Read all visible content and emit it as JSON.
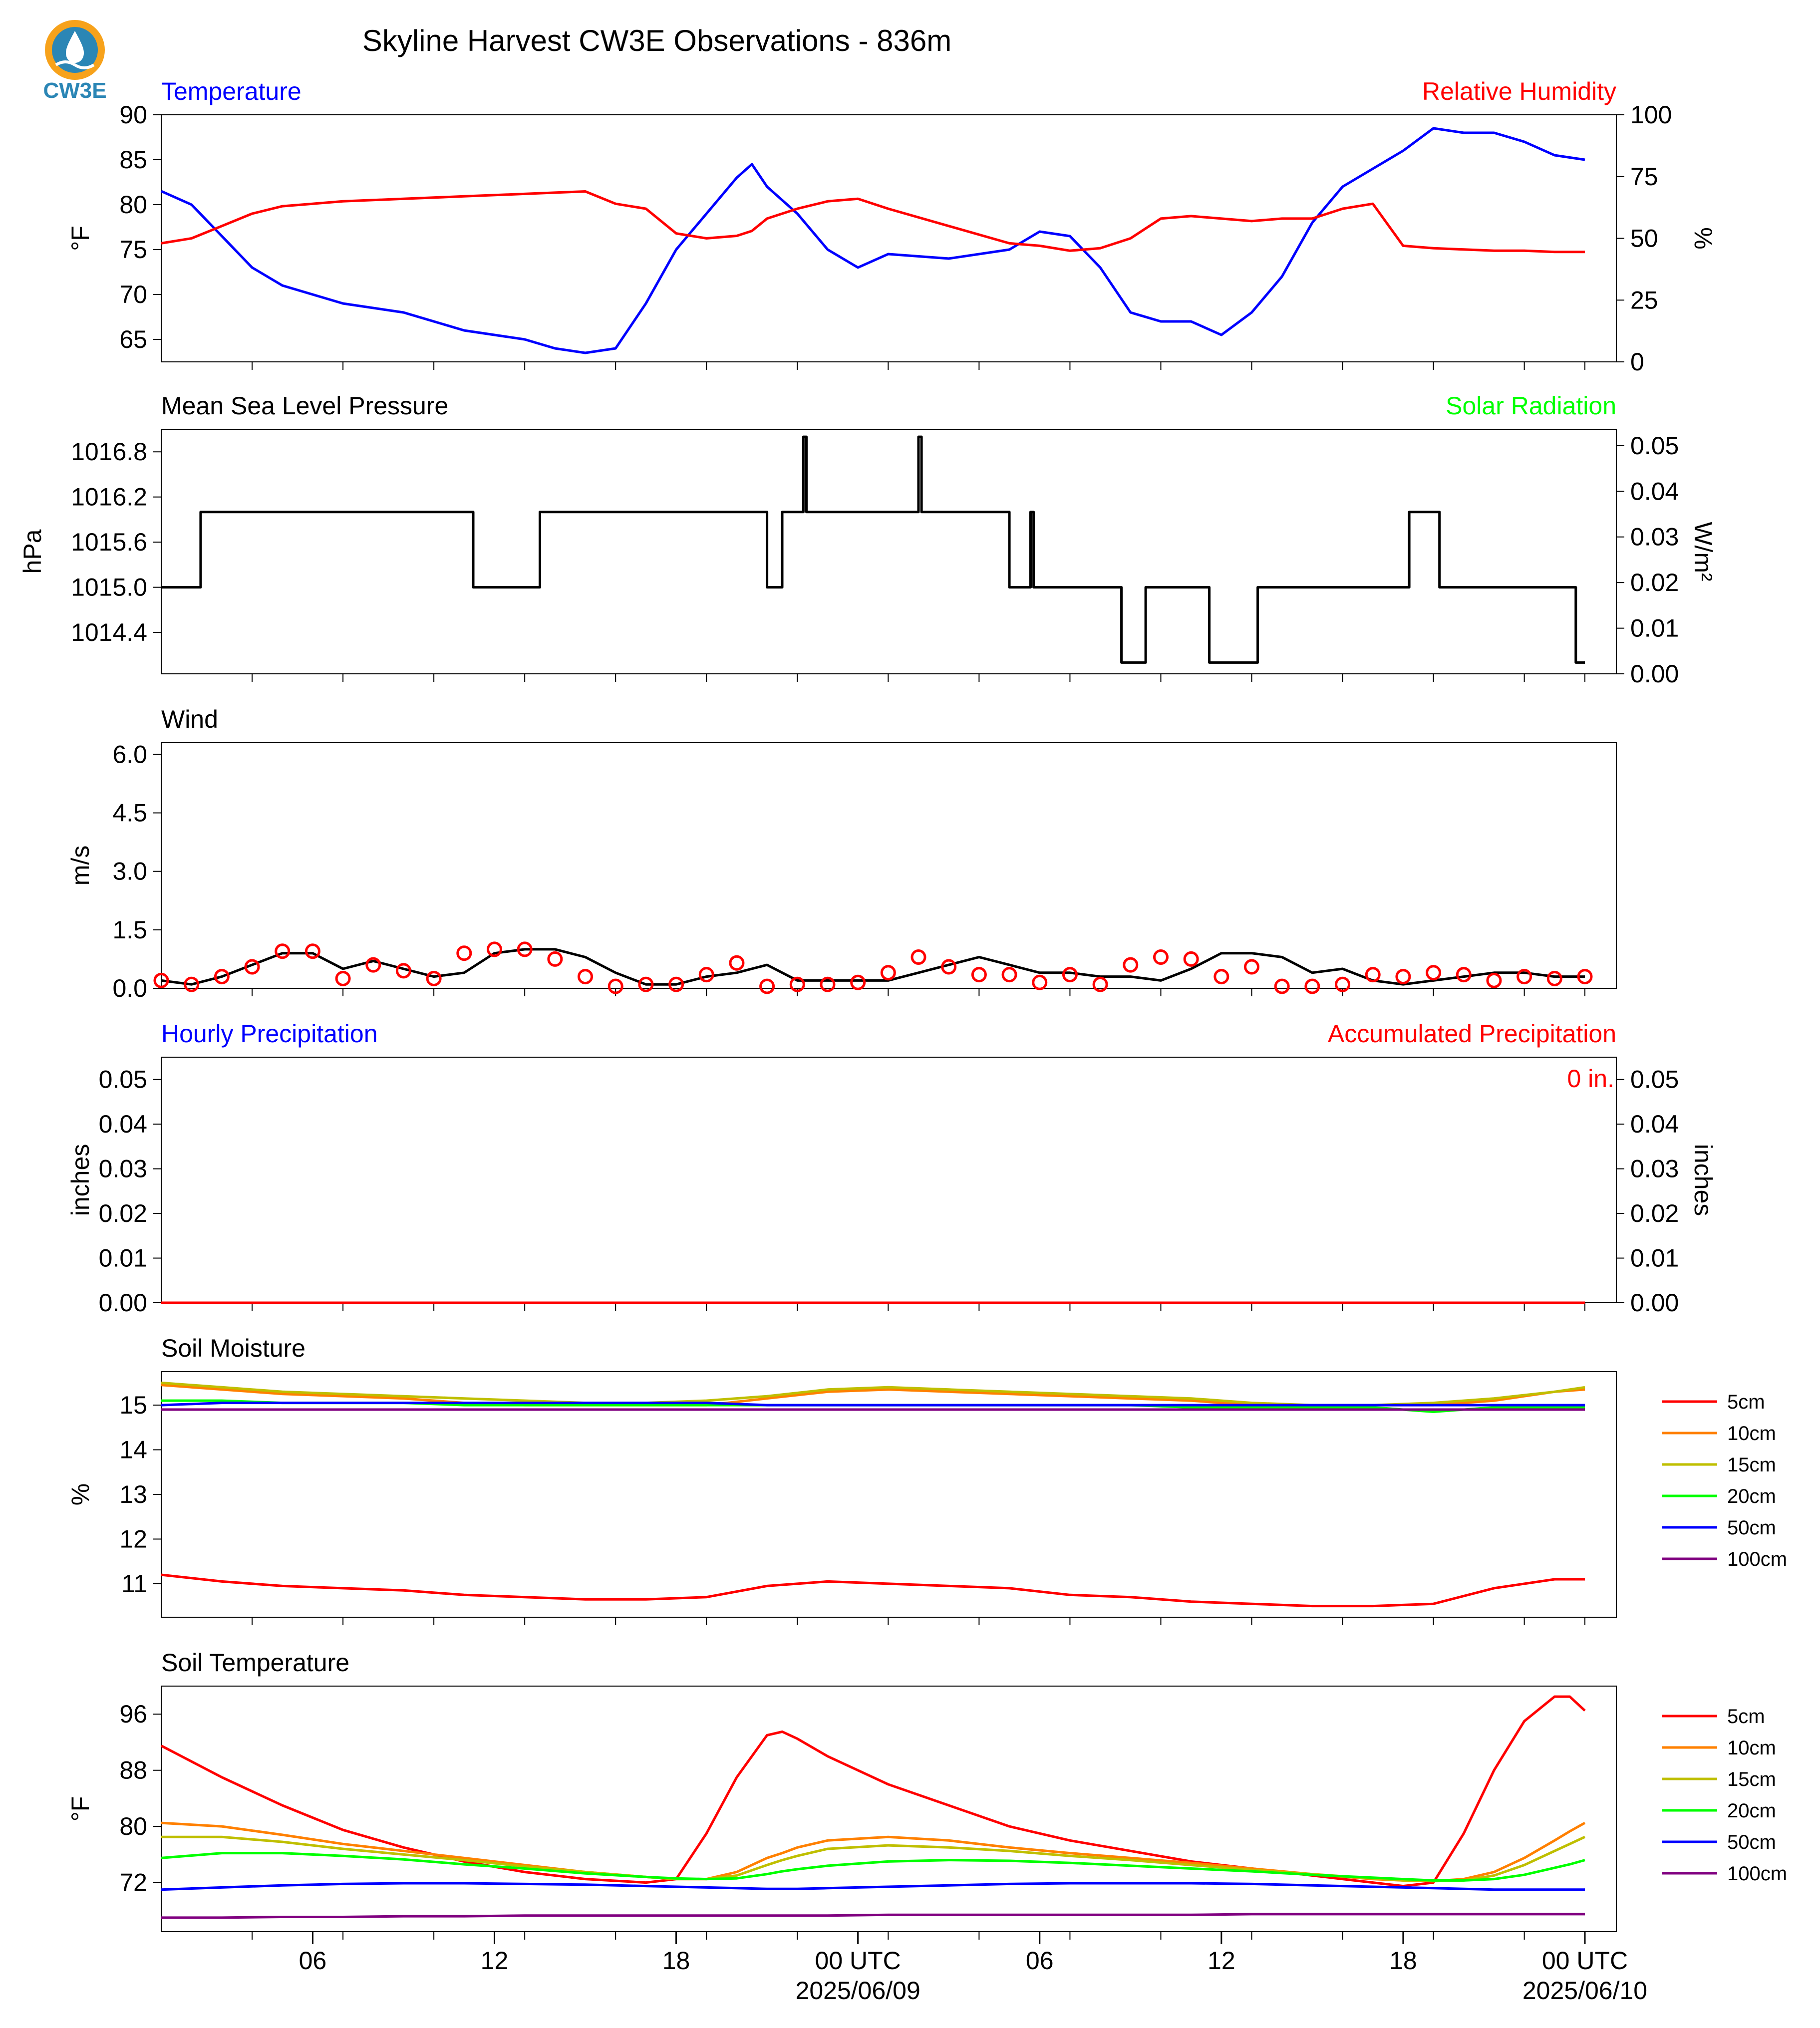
{
  "title": "Skyline Harvest CW3E Observations - 836m",
  "logo": {
    "text": "CW3E",
    "color": "#2b86b5",
    "accent": "#f7a21b"
  },
  "colors": {
    "blue": "#0000ff",
    "red": "#ff0000",
    "green": "#00ff00",
    "black": "#000000",
    "orange": "#ff8000",
    "olive": "#bfbf00",
    "purple": "#800080"
  },
  "time_axis": {
    "tick_labels": [
      "06",
      "12",
      "18",
      "00 UTC",
      "06",
      "12",
      "18",
      "00 UTC"
    ],
    "date_labels": [
      "2025/06/09",
      "2025/06/10"
    ]
  },
  "legend": {
    "entries": [
      "5cm",
      "10cm",
      "15cm",
      "20cm",
      "50cm",
      "100cm"
    ],
    "colors": [
      "#ff0000",
      "#ff8000",
      "#bfbf00",
      "#00ff00",
      "#0000ff",
      "#800080"
    ]
  },
  "chart_data": [
    {
      "id": "temp_rh",
      "type": "line",
      "title_left": "Temperature",
      "title_right": "Relative Humidity",
      "ylabel": "°F",
      "ylabel2": "%",
      "ylim": [
        62.5,
        90
      ],
      "yticks": [
        "65",
        "70",
        "75",
        "80",
        "85",
        "90"
      ],
      "ylim2": [
        0,
        100
      ],
      "yticks2": [
        "0",
        "25",
        "50",
        "75",
        "100"
      ],
      "x_hours": [
        0,
        1,
        2,
        3,
        4,
        5,
        6,
        8,
        10,
        12,
        13,
        14,
        15,
        16,
        17,
        18,
        19,
        19.5,
        20,
        21,
        22,
        23,
        24,
        26,
        28,
        29,
        30,
        31,
        32,
        33,
        34,
        35,
        36,
        37,
        38,
        39,
        40,
        41,
        42,
        43,
        44,
        45,
        46,
        47
      ],
      "series": [
        {
          "name": "Temperature",
          "color": "#0000ff",
          "values": [
            81.5,
            80,
            76.5,
            73,
            71,
            70,
            69,
            68,
            66,
            65,
            64,
            63.5,
            64,
            69,
            75,
            79,
            83,
            84.5,
            82,
            79,
            75,
            73,
            74.5,
            74,
            75,
            77,
            76.5,
            73,
            68,
            67,
            67,
            65.5,
            68,
            72,
            78,
            82,
            84,
            86,
            88.5,
            88,
            88,
            87,
            85.5,
            85
          ]
        },
        {
          "name": "Relative Humidity",
          "color": "#ff0000",
          "axis": "right",
          "values": [
            48,
            50,
            55,
            60,
            63,
            64,
            65,
            66,
            67,
            68,
            68.5,
            69,
            64,
            62,
            52,
            50,
            51,
            53,
            58,
            62,
            65,
            66,
            62,
            55,
            48,
            47,
            45,
            46,
            50,
            58,
            59,
            58,
            57,
            58,
            58,
            62,
            64,
            47,
            46,
            45.5,
            45,
            45,
            44.5,
            44.5
          ]
        }
      ]
    },
    {
      "id": "pressure",
      "type": "line",
      "title_left": "Mean Sea Level Pressure",
      "title_right": "Solar Radiation",
      "ylabel": "hPa",
      "ylabel2": "W/m²",
      "ylim": [
        1013.85,
        1017.1
      ],
      "yticks": [
        "1016.8",
        "1016.2",
        "1015.6",
        "1015.0",
        "1014.4"
      ],
      "ylim2": [
        0,
        0.0536
      ],
      "yticks2": [
        "0.00",
        "0.01",
        "0.02",
        "0.03",
        "0.04",
        "0.05"
      ],
      "x_hours": [
        0,
        1.3,
        1.3,
        10.3,
        10.3,
        12.5,
        12.5,
        14.0,
        14.0,
        20.0,
        20.0,
        20.5,
        20.5,
        21.2,
        21.2,
        21.3,
        21.3,
        25.0,
        25.0,
        25.1,
        25.1,
        28.0,
        28.0,
        28.7,
        28.7,
        28.8,
        28.8,
        31.7,
        31.7,
        32.5,
        32.5,
        34.6,
        34.6,
        36.2,
        36.2,
        36.9,
        36.9,
        41.2,
        41.2,
        42.2,
        42.2,
        46.7,
        46.7,
        47.0
      ],
      "series": [
        {
          "name": "Mean Sea Level Pressure",
          "color": "#000000",
          "values": [
            1015.0,
            1015.0,
            1016.0,
            1016.0,
            1015.0,
            1015.0,
            1016.0,
            1016.0,
            1016.0,
            1016.0,
            1015.0,
            1015.0,
            1016.0,
            1016.0,
            1017.0,
            1017.0,
            1016.0,
            1016.0,
            1017.0,
            1017.0,
            1016.0,
            1016.0,
            1015.0,
            1015.0,
            1016.0,
            1016.0,
            1015.0,
            1015.0,
            1014.0,
            1014.0,
            1015.0,
            1015.0,
            1014.0,
            1014.0,
            1015.0,
            1015.0,
            1015.0,
            1015.0,
            1016.0,
            1016.0,
            1015.0,
            1015.0,
            1014.0,
            1014.0
          ]
        }
      ]
    },
    {
      "id": "wind",
      "type": "line",
      "title_left": "Wind",
      "ylabel": "m/s",
      "ylim": [
        0,
        6.3
      ],
      "yticks": [
        "0.0",
        "1.5",
        "3.0",
        "4.5",
        "6.0"
      ],
      "x_hours": [
        0,
        1,
        2,
        3,
        4,
        5,
        6,
        7,
        8,
        9,
        10,
        11,
        12,
        13,
        14,
        15,
        16,
        17,
        18,
        19,
        20,
        21,
        22,
        23,
        24,
        25,
        26,
        27,
        28,
        29,
        30,
        31,
        32,
        33,
        34,
        35,
        36,
        37,
        38,
        39,
        40,
        41,
        42,
        43,
        44,
        45,
        46,
        47
      ],
      "series": [
        {
          "name": "Wind",
          "color": "#000000",
          "values": [
            0.2,
            0.1,
            0.3,
            0.6,
            0.9,
            0.9,
            0.5,
            0.7,
            0.5,
            0.3,
            0.4,
            0.9,
            1.0,
            1.0,
            0.8,
            0.4,
            0.1,
            0.1,
            0.3,
            0.4,
            0.6,
            0.2,
            0.2,
            0.2,
            0.2,
            0.4,
            0.6,
            0.8,
            0.6,
            0.4,
            0.4,
            0.3,
            0.3,
            0.2,
            0.5,
            0.9,
            0.9,
            0.8,
            0.4,
            0.5,
            0.2,
            0.1,
            0.2,
            0.3,
            0.4,
            0.4,
            0.3,
            0.3
          ]
        },
        {
          "name": "Wind gust markers",
          "color": "#ff0000",
          "marker": "circle",
          "values": [
            0.2,
            0.1,
            0.3,
            0.55,
            0.95,
            0.95,
            0.25,
            0.6,
            0.45,
            0.25,
            0.9,
            1.0,
            1.0,
            0.75,
            0.3,
            0.05,
            0.1,
            0.1,
            0.35,
            0.65,
            0.05,
            0.1,
            0.1,
            0.15,
            0.4,
            0.8,
            0.55,
            0.35,
            0.35,
            0.15,
            0.35,
            0.1,
            0.6,
            0.8,
            0.75,
            0.3,
            0.55,
            0.05,
            0.05,
            0.1,
            0.35,
            0.3,
            0.4,
            0.35,
            0.2,
            0.3,
            0.25,
            0.3
          ]
        }
      ]
    },
    {
      "id": "precip",
      "type": "line",
      "title_left": "Hourly Precipitation",
      "title_right": "Accumulated Precipitation",
      "annotation": "0 in.",
      "ylabel": "inches",
      "ylabel2": "inches",
      "ylim": [
        0,
        0.055
      ],
      "yticks": [
        "0.00",
        "0.01",
        "0.02",
        "0.03",
        "0.04",
        "0.05"
      ],
      "yticks2": [
        "0.00",
        "0.01",
        "0.02",
        "0.03",
        "0.04",
        "0.05"
      ],
      "x_hours": [
        0,
        47
      ],
      "series": [
        {
          "name": "Accumulated Precipitation",
          "color": "#ff0000",
          "values": [
            0,
            0
          ]
        }
      ]
    },
    {
      "id": "soil_moisture",
      "type": "line",
      "title_left": "Soil Moisture",
      "ylabel": "%",
      "ylim": [
        10.25,
        15.75
      ],
      "yticks": [
        "11",
        "12",
        "13",
        "14",
        "15"
      ],
      "x_hours": [
        0,
        2,
        4,
        8,
        10,
        12,
        14,
        16,
        18,
        20,
        22,
        24,
        26,
        28,
        30,
        32,
        34,
        36,
        38,
        40,
        42,
        44,
        46,
        47
      ],
      "series": [
        {
          "name": "5cm",
          "color": "#ff0000",
          "values": [
            11.2,
            11.05,
            10.95,
            10.85,
            10.75,
            10.7,
            10.65,
            10.65,
            10.7,
            10.95,
            11.05,
            11.0,
            10.95,
            10.9,
            10.75,
            10.7,
            10.6,
            10.55,
            10.5,
            10.5,
            10.55,
            10.9,
            11.1,
            11.1
          ]
        },
        {
          "name": "10cm",
          "color": "#ff8000",
          "values": [
            15.45,
            15.35,
            15.25,
            15.15,
            15.05,
            15.0,
            15.0,
            15.0,
            15.0,
            15.15,
            15.3,
            15.35,
            15.3,
            15.25,
            15.2,
            15.15,
            15.1,
            15.0,
            15.0,
            15.0,
            15.0,
            15.1,
            15.3,
            15.35
          ]
        },
        {
          "name": "15cm",
          "color": "#bfbf00",
          "values": [
            15.5,
            15.4,
            15.3,
            15.2,
            15.15,
            15.1,
            15.05,
            15.05,
            15.1,
            15.2,
            15.35,
            15.4,
            15.35,
            15.3,
            15.25,
            15.2,
            15.15,
            15.05,
            15.0,
            15.0,
            15.05,
            15.15,
            15.3,
            15.4
          ]
        },
        {
          "name": "20cm",
          "color": "#00ff00",
          "values": [
            15.1,
            15.1,
            15.05,
            15.05,
            15.0,
            15.0,
            15.0,
            15.0,
            15.0,
            15.0,
            15.0,
            15.0,
            15.0,
            15.0,
            15.0,
            15.0,
            14.95,
            14.95,
            14.95,
            14.95,
            14.85,
            14.95,
            14.95,
            14.95
          ]
        },
        {
          "name": "50cm",
          "color": "#0000ff",
          "values": [
            15.0,
            15.05,
            15.05,
            15.05,
            15.05,
            15.05,
            15.05,
            15.05,
            15.05,
            15.0,
            15.0,
            15.0,
            15.0,
            15.0,
            15.0,
            15.0,
            15.0,
            15.0,
            15.0,
            15.0,
            15.0,
            15.0,
            15.0,
            15.0
          ]
        },
        {
          "name": "100cm",
          "color": "#800080",
          "values": [
            14.9,
            14.9,
            14.9,
            14.9,
            14.9,
            14.9,
            14.9,
            14.9,
            14.9,
            14.9,
            14.9,
            14.9,
            14.9,
            14.9,
            14.9,
            14.9,
            14.9,
            14.9,
            14.9,
            14.9,
            14.9,
            14.9,
            14.9,
            14.9
          ]
        }
      ]
    },
    {
      "id": "soil_temperature",
      "type": "line",
      "title_left": "Soil Temperature",
      "ylabel": "°F",
      "ylim": [
        65,
        100
      ],
      "yticks": [
        "72",
        "80",
        "88",
        "96"
      ],
      "x_hours": [
        0,
        2,
        4,
        6,
        8,
        10,
        12,
        14,
        16,
        17,
        18,
        19,
        20,
        20.5,
        21,
        22,
        24,
        26,
        28,
        30,
        32,
        34,
        36,
        38,
        40,
        41,
        42,
        43,
        44,
        45,
        46,
        46.5,
        47
      ],
      "series": [
        {
          "name": "5cm",
          "color": "#ff0000",
          "values": [
            91.5,
            87,
            83,
            79.5,
            77,
            75,
            73.5,
            72.5,
            72,
            72.5,
            79,
            87,
            93,
            93.5,
            92.5,
            90,
            86,
            83,
            80,
            78,
            76.5,
            75,
            74,
            73,
            72,
            71.5,
            72,
            79,
            88,
            95,
            98.5,
            98.5,
            96.5
          ]
        },
        {
          "name": "10cm",
          "color": "#ff8000",
          "values": [
            80.5,
            80,
            78.8,
            77.5,
            76.5,
            75.5,
            74.5,
            73.5,
            72.8,
            72.5,
            72.5,
            73.5,
            75.5,
            76.2,
            77,
            78,
            78.5,
            78,
            77,
            76.2,
            75.5,
            74.8,
            74,
            73.2,
            72.5,
            72.3,
            72.2,
            72.5,
            73.5,
            75.5,
            78,
            79.3,
            80.5
          ]
        },
        {
          "name": "15cm",
          "color": "#bfbf00",
          "values": [
            78.5,
            78.5,
            77.8,
            76.8,
            76,
            75.2,
            74.3,
            73.5,
            72.8,
            72.5,
            72.5,
            73,
            74.5,
            75.2,
            75.8,
            76.8,
            77.3,
            77,
            76.5,
            75.8,
            75.2,
            74.5,
            73.8,
            73.2,
            72.6,
            72.3,
            72.2,
            72.3,
            73,
            74.5,
            76.5,
            77.5,
            78.5
          ]
        },
        {
          "name": "20cm",
          "color": "#00ff00",
          "values": [
            75.5,
            76.2,
            76.2,
            75.8,
            75.3,
            74.6,
            74,
            73.3,
            72.8,
            72.6,
            72.5,
            72.6,
            73.2,
            73.6,
            73.9,
            74.4,
            75,
            75.2,
            75.1,
            74.8,
            74.4,
            74,
            73.6,
            73.1,
            72.7,
            72.5,
            72.3,
            72.3,
            72.5,
            73.1,
            74.1,
            74.6,
            75.2
          ]
        },
        {
          "name": "50cm",
          "color": "#0000ff",
          "values": [
            71,
            71.3,
            71.6,
            71.8,
            71.9,
            71.9,
            71.8,
            71.7,
            71.5,
            71.4,
            71.3,
            71.2,
            71.1,
            71.1,
            71.1,
            71.2,
            71.4,
            71.6,
            71.8,
            71.9,
            71.9,
            71.9,
            71.8,
            71.6,
            71.4,
            71.3,
            71.2,
            71.1,
            71.0,
            71.0,
            71.0,
            71.0,
            71.0
          ]
        },
        {
          "name": "100cm",
          "color": "#800080",
          "values": [
            67,
            67,
            67.1,
            67.1,
            67.2,
            67.2,
            67.3,
            67.3,
            67.3,
            67.3,
            67.3,
            67.3,
            67.3,
            67.3,
            67.3,
            67.3,
            67.4,
            67.4,
            67.4,
            67.4,
            67.4,
            67.4,
            67.5,
            67.5,
            67.5,
            67.5,
            67.5,
            67.5,
            67.5,
            67.5,
            67.5,
            67.5,
            67.5
          ]
        }
      ]
    }
  ]
}
